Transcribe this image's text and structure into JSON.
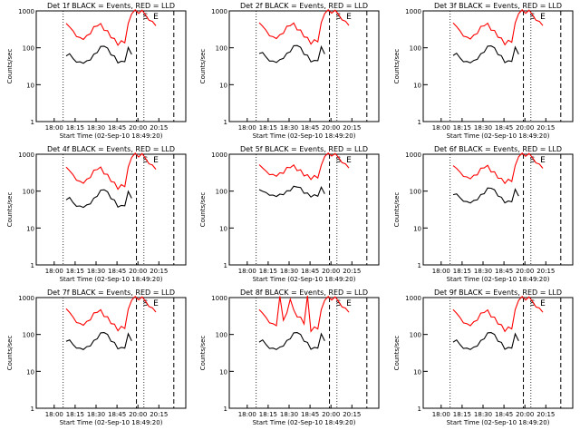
{
  "chart_data": [
    {
      "type": "line",
      "title": "Det 1f BLACK = Events, RED = LLD",
      "xlabel": "Start Time (02-Sep-10 18:49:20)",
      "ylabel": "Counts/sec",
      "x_ticks": [
        "18:00",
        "18:15",
        "18:30",
        "18:45",
        "20:00",
        "20:15"
      ],
      "y_ticks": [
        "1",
        "10",
        "100",
        "1000"
      ],
      "ylim": [
        1,
        1000
      ],
      "yscale": "log",
      "markers": [
        "S",
        "E"
      ],
      "series": [
        {
          "name": "LLD",
          "color": "#ff0000",
          "values": [
            460,
            370,
            280,
            210,
            180,
            180,
            200,
            260,
            340,
            430,
            410,
            330,
            260,
            210,
            160,
            130,
            140,
            150,
            420,
            900,
            1000,
            900,
            1000,
            800,
            550,
            520,
            400
          ]
        },
        {
          "name": "Events",
          "color": "#000000",
          "values": [
            60,
            70,
            50,
            42,
            40,
            40,
            42,
            50,
            62,
            80,
            100,
            120,
            90,
            70,
            55,
            42,
            40,
            45,
            95,
            70,
            0,
            0,
            0,
            0,
            0,
            0,
            0
          ]
        }
      ]
    },
    {
      "type": "line",
      "title": "Det 2f BLACK = Events, RED = LLD",
      "xlabel": "Start Time (02-Sep-10 18:49:20)",
      "ylabel": "Counts/sec",
      "x_ticks": [
        "18:00",
        "18:15",
        "18:30",
        "18:45",
        "20:00",
        "20:15"
      ],
      "y_ticks": [
        "1",
        "10",
        "100",
        "1000"
      ],
      "ylim": [
        1,
        1000
      ],
      "yscale": "log",
      "markers": [
        "S",
        "E"
      ],
      "series": [
        {
          "name": "LLD",
          "color": "#ff0000",
          "values": [
            480,
            390,
            290,
            220,
            190,
            190,
            210,
            270,
            350,
            440,
            420,
            340,
            270,
            220,
            170,
            140,
            150,
            160,
            440,
            920,
            1000,
            920,
            1000,
            820,
            560,
            530,
            410
          ]
        },
        {
          "name": "Events",
          "color": "#000000",
          "values": [
            70,
            75,
            55,
            45,
            42,
            42,
            45,
            55,
            66,
            84,
            105,
            125,
            95,
            72,
            58,
            45,
            42,
            48,
            100,
            72,
            0,
            0,
            0,
            0,
            0,
            0,
            0
          ]
        }
      ]
    },
    {
      "type": "line",
      "title": "Det 3f BLACK = Events, RED = LLD",
      "xlabel": "Start Time (02-Sep-10 18:49:20)",
      "ylabel": "Counts/sec",
      "x_ticks": [
        "18:00",
        "18:15",
        "18:30",
        "18:45",
        "20:00",
        "20:15"
      ],
      "y_ticks": [
        "1",
        "10",
        "100",
        "1000"
      ],
      "ylim": [
        1,
        1000
      ],
      "yscale": "log",
      "markers": [
        "S",
        "E"
      ],
      "series": [
        {
          "name": "LLD",
          "color": "#ff0000",
          "values": [
            470,
            380,
            280,
            215,
            185,
            185,
            205,
            265,
            345,
            435,
            415,
            335,
            265,
            215,
            165,
            135,
            145,
            155,
            430,
            910,
            1000,
            910,
            1000,
            810,
            550,
            520,
            405
          ]
        },
        {
          "name": "Events",
          "color": "#000000",
          "values": [
            62,
            72,
            52,
            43,
            41,
            41,
            43,
            52,
            64,
            82,
            102,
            122,
            92,
            71,
            56,
            43,
            41,
            46,
            97,
            71,
            0,
            0,
            0,
            0,
            0,
            0,
            0
          ]
        }
      ]
    },
    {
      "type": "line",
      "title": "Det 4f BLACK = Events, RED = LLD",
      "xlabel": "Start Time (02-Sep-10 18:49:20)",
      "ylabel": "Counts/sec",
      "x_ticks": [
        "18:00",
        "18:15",
        "18:30",
        "18:45",
        "20:00",
        "20:15"
      ],
      "y_ticks": [
        "1",
        "10",
        "100",
        "1000"
      ],
      "ylim": [
        1,
        1000
      ],
      "yscale": "log",
      "markers": [
        "S",
        "E"
      ],
      "series": [
        {
          "name": "LLD",
          "color": "#ff0000",
          "values": [
            450,
            360,
            270,
            205,
            175,
            175,
            195,
            255,
            335,
            425,
            405,
            325,
            255,
            205,
            155,
            125,
            135,
            145,
            410,
            890,
            1000,
            890,
            1000,
            790,
            540,
            510,
            395
          ]
        },
        {
          "name": "Events",
          "color": "#000000",
          "values": [
            58,
            68,
            48,
            40,
            38,
            38,
            40,
            48,
            60,
            78,
            98,
            118,
            88,
            68,
            53,
            40,
            38,
            43,
            92,
            68,
            0,
            0,
            0,
            0,
            0,
            0,
            0
          ]
        }
      ]
    },
    {
      "type": "line",
      "title": "Det 5f BLACK = Events, RED = LLD",
      "xlabel": "Start Time (02-Sep-10 18:49:20)",
      "ylabel": "Counts/sec",
      "x_ticks": [
        "18:00",
        "18:15",
        "18:30",
        "18:45",
        "20:00",
        "20:15"
      ],
      "y_ticks": [
        "1",
        "10",
        "100",
        "1000"
      ],
      "ylim": [
        1,
        1000
      ],
      "yscale": "log",
      "markers": [
        "S",
        "E"
      ],
      "series": [
        {
          "name": "LLD",
          "color": "#ff0000",
          "values": [
            520,
            430,
            340,
            290,
            270,
            270,
            290,
            330,
            400,
            480,
            460,
            400,
            340,
            290,
            250,
            230,
            240,
            250,
            460,
            940,
            1000,
            940,
            1000,
            840,
            580,
            550,
            430
          ]
        },
        {
          "name": "Events",
          "color": "#000000",
          "values": [
            110,
            100,
            90,
            80,
            75,
            75,
            78,
            85,
            95,
            110,
            125,
            140,
            115,
            95,
            82,
            75,
            74,
            78,
            120,
            90,
            0,
            0,
            0,
            0,
            0,
            0,
            0
          ]
        }
      ]
    },
    {
      "type": "line",
      "title": "Det 6f BLACK = Events, RED = LLD",
      "xlabel": "Start Time (02-Sep-10 18:49:20)",
      "ylabel": "Counts/sec",
      "x_ticks": [
        "18:00",
        "18:15",
        "18:30",
        "18:45",
        "20:00",
        "20:15"
      ],
      "y_ticks": [
        "1",
        "10",
        "100",
        "1000"
      ],
      "ylim": [
        1,
        1000
      ],
      "yscale": "log",
      "markers": [
        "S",
        "E"
      ],
      "series": [
        {
          "name": "LLD",
          "color": "#ff0000",
          "values": [
            490,
            420,
            320,
            260,
            230,
            230,
            250,
            300,
            380,
            470,
            450,
            370,
            300,
            250,
            200,
            180,
            190,
            200,
            450,
            930,
            1000,
            930,
            1000,
            830,
            570,
            540,
            420
          ]
        },
        {
          "name": "Events",
          "color": "#000000",
          "values": [
            80,
            85,
            65,
            55,
            50,
            50,
            53,
            62,
            75,
            92,
            112,
            130,
            100,
            80,
            63,
            52,
            50,
            55,
            105,
            78,
            0,
            0,
            0,
            0,
            0,
            0,
            0
          ]
        }
      ]
    },
    {
      "type": "line",
      "title": "Det 7f BLACK = Events, RED = LLD",
      "xlabel": "Start Time (02-Sep-10 18:49:20)",
      "ylabel": "Counts/sec",
      "x_ticks": [
        "18:00",
        "18:15",
        "18:30",
        "18:45",
        "20:00",
        "20:15"
      ],
      "y_ticks": [
        "1",
        "10",
        "100",
        "1000"
      ],
      "ylim": [
        1,
        1000
      ],
      "yscale": "log",
      "markers": [
        "S",
        "E"
      ],
      "series": [
        {
          "name": "LLD",
          "color": "#ff0000",
          "values": [
            500,
            400,
            290,
            220,
            190,
            190,
            210,
            270,
            350,
            440,
            420,
            340,
            270,
            220,
            170,
            140,
            150,
            160,
            440,
            920,
            1000,
            920,
            1000,
            820,
            560,
            530,
            410
          ]
        },
        {
          "name": "Events",
          "color": "#000000",
          "values": [
            65,
            72,
            52,
            44,
            41,
            41,
            44,
            52,
            64,
            82,
            102,
            122,
            92,
            71,
            56,
            44,
            41,
            46,
            98,
            71,
            0,
            0,
            0,
            0,
            0,
            0,
            0
          ]
        }
      ]
    },
    {
      "type": "line",
      "title": "Det 8f BLACK = Events, RED = LLD",
      "xlabel": "Start Time (02-Sep-10 18:49:20)",
      "ylabel": "Counts/sec",
      "x_ticks": [
        "18:00",
        "18:15",
        "18:30",
        "18:45",
        "20:00",
        "20:15"
      ],
      "y_ticks": [
        "1",
        "10",
        "100",
        "1000"
      ],
      "ylim": [
        1,
        1000
      ],
      "yscale": "log",
      "markers": [
        "S",
        "E"
      ],
      "series": [
        {
          "name": "LLD",
          "color": "#ff0000",
          "values": [
            470,
            380,
            280,
            215,
            185,
            185,
            1000,
            265,
            345,
            1000,
            415,
            335,
            265,
            215,
            1000,
            135,
            145,
            155,
            430,
            910,
            1000,
            910,
            1000,
            810,
            550,
            520,
            405
          ]
        },
        {
          "name": "Events",
          "color": "#000000",
          "values": [
            62,
            72,
            52,
            43,
            41,
            41,
            43,
            52,
            64,
            82,
            102,
            122,
            92,
            71,
            56,
            43,
            41,
            46,
            97,
            71,
            0,
            0,
            0,
            0,
            0,
            0,
            0
          ]
        }
      ]
    },
    {
      "type": "line",
      "title": "Det 9f BLACK = Events, RED = LLD",
      "xlabel": "Start Time (02-Sep-10 18:49:20)",
      "ylabel": "Counts/sec",
      "x_ticks": [
        "18:00",
        "18:15",
        "18:30",
        "18:45",
        "20:00",
        "20:15"
      ],
      "y_ticks": [
        "1",
        "10",
        "100",
        "1000"
      ],
      "ylim": [
        1,
        1000
      ],
      "yscale": "log",
      "markers": [
        "S",
        "E"
      ],
      "series": [
        {
          "name": "LLD",
          "color": "#ff0000",
          "values": [
            470,
            380,
            280,
            215,
            185,
            185,
            205,
            265,
            345,
            435,
            415,
            335,
            265,
            215,
            165,
            135,
            145,
            155,
            430,
            910,
            1000,
            910,
            1000,
            810,
            550,
            520,
            405
          ]
        },
        {
          "name": "Events",
          "color": "#000000",
          "values": [
            62,
            72,
            52,
            43,
            41,
            41,
            43,
            52,
            64,
            82,
            102,
            122,
            92,
            71,
            56,
            43,
            41,
            46,
            97,
            71,
            0,
            0,
            0,
            0,
            0,
            0,
            0
          ]
        }
      ]
    }
  ]
}
